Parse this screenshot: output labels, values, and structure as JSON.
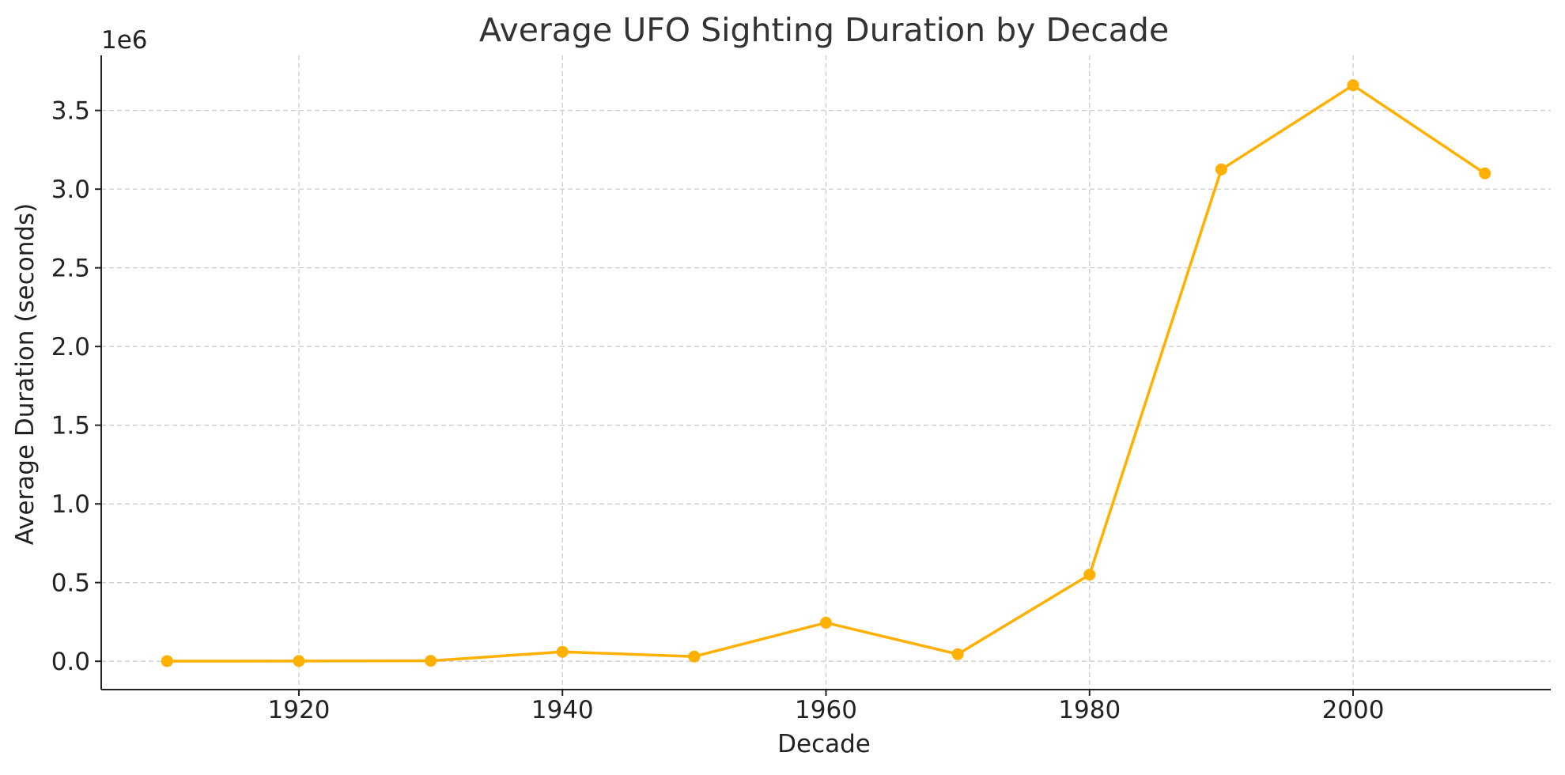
{
  "chart_data": {
    "type": "line",
    "title": "Average UFO Sighting Duration by Decade",
    "xlabel": "Decade",
    "ylabel": "Average Duration (seconds)",
    "y_offset_label": "1e6",
    "x": [
      1910,
      1920,
      1930,
      1940,
      1950,
      1960,
      1970,
      1980,
      1990,
      2000,
      2010
    ],
    "series": [
      {
        "values": [
          1000,
          1500,
          3000,
          60000,
          30000,
          245000,
          45000,
          550000,
          3125000,
          3660000,
          3100000
        ],
        "color": "#FFB000"
      }
    ],
    "xlim": [
      1905,
      2015
    ],
    "ylim": [
      -180000,
      3850000
    ],
    "x_ticks": [
      1920,
      1940,
      1960,
      1980,
      2000
    ],
    "x_tick_labels": [
      "1920",
      "1940",
      "1960",
      "1980",
      "2000"
    ],
    "y_ticks": [
      0,
      500000,
      1000000,
      1500000,
      2000000,
      2500000,
      3000000,
      3500000
    ],
    "y_tick_labels": [
      "0.0",
      "0.5",
      "1.0",
      "1.5",
      "2.0",
      "2.5",
      "3.0",
      "3.5"
    ],
    "grid": true,
    "legend": "none"
  }
}
